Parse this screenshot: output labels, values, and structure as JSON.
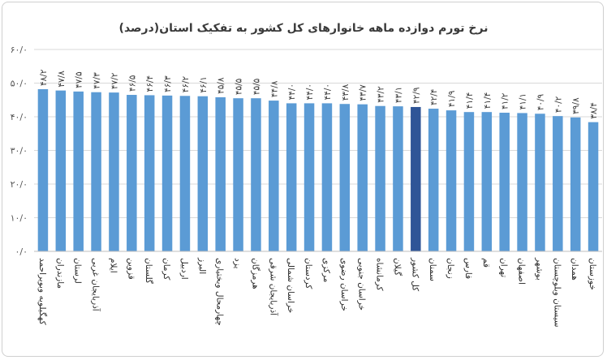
{
  "chart_data": {
    "type": "bar",
    "title": "نرخ تورم دوازده ماهه خانوارهای کل کشور به تفکیک استان(درصد)",
    "ylim": [
      0,
      60
    ],
    "y_ticks": [
      0,
      10,
      20,
      30,
      40,
      50,
      60
    ],
    "y_tick_labels": [
      "۰/۰",
      "۱۰/۰",
      "۲۰/۰",
      "۳۰/۰",
      "۴۰/۰",
      "۵۰/۰",
      "۶۰/۰"
    ],
    "grid": true,
    "highlight_category": "کل کشور",
    "colors": {
      "bar": "#5b9bd5",
      "highlight": "#2f5597",
      "grid": "#d9d9d9"
    },
    "categories": [
      "کهگیلویه وبویراحمد",
      "مازندران",
      "لرستان",
      "آذربایجان غربی",
      "ایلام",
      "قزوین",
      "گلستان",
      "کرمان",
      "اردبیل",
      "البرز",
      "چهارمحال وبختیاری",
      "یزد",
      "هرمزگان",
      "آذربایجان شرقی",
      "خراسان شمالی",
      "کردستان",
      "مرکزی",
      "خراسان رضوی",
      "خراسان جنوبی",
      "کرمانشاه",
      "گیلان",
      "کل کشور",
      "سمنان",
      "زنجان",
      "فارس",
      "قم",
      "تهران",
      "اصفهان",
      "بوشهر",
      "سیستان وبلوچستان",
      "همدان",
      "خوزستان"
    ],
    "values": [
      48.2,
      47.8,
      47.5,
      47.3,
      47.2,
      46.5,
      46.4,
      46.3,
      46.2,
      46.1,
      45.8,
      45.5,
      45.5,
      44.8,
      44.0,
      44.0,
      44.0,
      43.8,
      43.7,
      43.2,
      43.1,
      42.9,
      42.4,
      41.9,
      41.4,
      41.4,
      41.2,
      41.1,
      40.9,
      40.2,
      39.8,
      38.4
    ],
    "value_labels": [
      "۴۸/۲",
      "۴۷/۸",
      "۴۷/۵",
      "۴۷/۳",
      "۴۷/۲",
      "۴۶/۵",
      "۴۶/۴",
      "۴۶/۳",
      "۴۶/۲",
      "۴۶/۱",
      "۴۵/۸",
      "۴۵/۵",
      "۴۵/۵",
      "۴۴/۸",
      "۴۴/۰",
      "۴۴/۰",
      "۴۴/۰",
      "۴۳/۸",
      "۴۳/۷",
      "۴۳/۲",
      "۴۳/۱",
      "۴۲/۹",
      "۴۲/۴",
      "۴۱/۹",
      "۴۱/۴",
      "۴۱/۴",
      "۴۱/۲",
      "۴۱/۱",
      "۴۰/۹",
      "۴۰/۲",
      "۳۹/۸",
      "۳۸/۴"
    ]
  }
}
